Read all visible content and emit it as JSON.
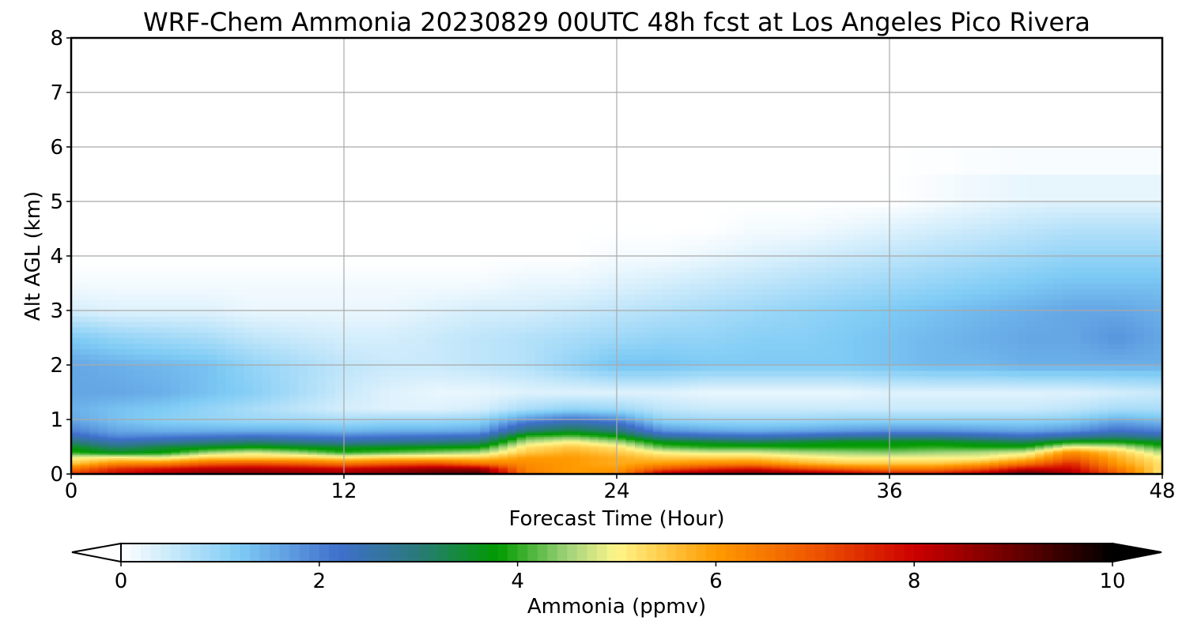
{
  "chart_data": {
    "type": "heatmap",
    "title": "WRF-Chem Ammonia  20230829 00UTC 48h fcst at Los Angeles Pico Rivera",
    "xlabel": "Forecast Time (Hour)",
    "ylabel": "Alt AGL (km)",
    "xlim": [
      0,
      48
    ],
    "ylim": [
      0,
      8
    ],
    "xticks": [
      "0",
      "12",
      "24",
      "36",
      "48"
    ],
    "yticks": [
      "0",
      "1",
      "2",
      "3",
      "4",
      "5",
      "6",
      "7",
      "8"
    ],
    "grid": true,
    "colorbar": {
      "label": "Ammonia  (ppmv)",
      "range": [
        0,
        10
      ],
      "ticks": [
        "0",
        "2",
        "4",
        "6",
        "8",
        "10"
      ],
      "extend": "both",
      "stops": [
        {
          "v": 0,
          "c": "#ffffff"
        },
        {
          "v": 1.2,
          "c": "#7ecbf5"
        },
        {
          "v": 2.2,
          "c": "#3f6fcc"
        },
        {
          "v": 3.0,
          "c": "#2a7a7a"
        },
        {
          "v": 3.8,
          "c": "#009a00"
        },
        {
          "v": 4.5,
          "c": "#9fd27a"
        },
        {
          "v": 5.0,
          "c": "#fff68a"
        },
        {
          "v": 6.0,
          "c": "#ff9a00"
        },
        {
          "v": 7.0,
          "c": "#ee5500"
        },
        {
          "v": 8.0,
          "c": "#cc0000"
        },
        {
          "v": 9.0,
          "c": "#6a0000"
        },
        {
          "v": 10.0,
          "c": "#000000"
        }
      ]
    },
    "x": [
      0,
      2,
      4,
      6,
      8,
      10,
      12,
      14,
      16,
      18,
      20,
      22,
      24,
      26,
      28,
      30,
      32,
      34,
      36,
      38,
      40,
      42,
      44,
      46,
      48
    ],
    "y": [
      0,
      0.1,
      0.2,
      0.3,
      0.4,
      0.5,
      0.6,
      0.7,
      0.8,
      1.0,
      1.2,
      1.5,
      2.0,
      2.5,
      3.0,
      3.5,
      4.0,
      4.5,
      5.0,
      6.0,
      8.0
    ],
    "z": [
      [
        7.5,
        8.0,
        8.5,
        8.8,
        8.8,
        8.7,
        8.6,
        8.9,
        9.2,
        9.5,
        6.5,
        6.0,
        6.2,
        8.5,
        9.0,
        9.2,
        9.0,
        8.6,
        8.0,
        8.0,
        8.5,
        9.5,
        8.5,
        7.0,
        5.0
      ],
      [
        6.5,
        7.5,
        7.8,
        8.2,
        8.3,
        8.2,
        8.0,
        8.3,
        8.6,
        8.5,
        6.3,
        6.0,
        6.0,
        7.0,
        7.5,
        7.8,
        7.2,
        6.8,
        6.5,
        6.5,
        7.0,
        8.0,
        8.0,
        6.5,
        5.2
      ],
      [
        5.5,
        6.2,
        6.3,
        6.8,
        7.0,
        6.8,
        6.5,
        6.8,
        7.0,
        6.5,
        6.2,
        6.0,
        5.8,
        6.0,
        6.2,
        6.3,
        5.8,
        5.5,
        5.5,
        5.5,
        5.8,
        6.5,
        7.5,
        6.0,
        5.2
      ],
      [
        5.0,
        5.2,
        5.0,
        5.5,
        5.5,
        5.5,
        5.3,
        5.5,
        5.5,
        5.5,
        6.0,
        6.0,
        5.8,
        5.5,
        5.5,
        5.5,
        5.2,
        5.0,
        5.0,
        5.0,
        5.0,
        5.5,
        6.8,
        5.8,
        5.0
      ],
      [
        4.0,
        3.6,
        3.8,
        4.5,
        4.8,
        4.5,
        4.0,
        4.2,
        4.4,
        4.6,
        5.5,
        5.8,
        5.5,
        5.0,
        4.8,
        4.8,
        4.6,
        4.5,
        4.4,
        4.5,
        4.6,
        4.8,
        6.2,
        5.5,
        4.6
      ],
      [
        3.6,
        3.0,
        3.4,
        3.6,
        3.8,
        3.6,
        3.5,
        3.6,
        3.7,
        3.8,
        5.2,
        5.5,
        5.2,
        4.2,
        4.0,
        4.0,
        3.9,
        3.9,
        3.9,
        4.0,
        3.9,
        3.9,
        5.0,
        4.8,
        4.0
      ],
      [
        3.0,
        2.4,
        2.6,
        2.8,
        3.0,
        2.8,
        2.6,
        2.7,
        2.8,
        3.0,
        4.6,
        5.0,
        4.5,
        3.6,
        3.4,
        3.2,
        3.4,
        3.6,
        3.6,
        3.6,
        3.4,
        3.2,
        3.8,
        3.8,
        3.5
      ],
      [
        2.4,
        1.9,
        2.0,
        2.1,
        2.2,
        2.1,
        2.0,
        2.1,
        2.2,
        2.3,
        4.0,
        4.2,
        3.8,
        2.6,
        2.4,
        2.3,
        2.4,
        2.6,
        2.7,
        2.7,
        2.5,
        2.3,
        2.6,
        2.9,
        2.6
      ],
      [
        2.0,
        1.6,
        1.5,
        1.5,
        1.5,
        1.5,
        1.4,
        1.5,
        1.5,
        1.6,
        3.0,
        3.4,
        3.0,
        1.8,
        1.6,
        1.5,
        1.6,
        1.7,
        1.8,
        1.8,
        1.7,
        1.6,
        1.8,
        2.2,
        2.0
      ],
      [
        1.6,
        1.3,
        1.1,
        1.0,
        0.9,
        0.9,
        0.8,
        0.9,
        0.9,
        1.0,
        1.8,
        2.2,
        1.9,
        1.0,
        0.9,
        0.9,
        0.9,
        1.0,
        1.0,
        1.0,
        1.0,
        1.0,
        1.1,
        1.5,
        1.3
      ],
      [
        1.5,
        1.3,
        1.2,
        1.0,
        0.8,
        0.6,
        0.4,
        0.3,
        0.3,
        0.4,
        0.8,
        1.0,
        0.9,
        0.6,
        0.5,
        0.5,
        0.5,
        0.5,
        0.5,
        0.5,
        0.5,
        0.5,
        0.6,
        0.8,
        0.8
      ],
      [
        1.6,
        1.6,
        1.5,
        1.3,
        1.1,
        0.8,
        0.5,
        0.3,
        0.2,
        0.2,
        0.3,
        0.3,
        0.3,
        0.3,
        0.2,
        0.2,
        0.2,
        0.2,
        0.3,
        0.3,
        0.3,
        0.3,
        0.3,
        0.4,
        0.5
      ],
      [
        1.6,
        1.5,
        1.4,
        1.3,
        1.0,
        0.8,
        0.6,
        0.5,
        0.5,
        0.6,
        0.7,
        1.0,
        1.3,
        1.3,
        1.2,
        1.2,
        1.2,
        1.2,
        1.3,
        1.4,
        1.4,
        1.5,
        1.5,
        1.5,
        1.5
      ],
      [
        1.2,
        1.0,
        0.9,
        0.8,
        0.6,
        0.5,
        0.4,
        0.4,
        0.5,
        0.6,
        0.7,
        0.8,
        0.9,
        1.0,
        1.0,
        1.1,
        1.1,
        1.2,
        1.3,
        1.4,
        1.5,
        1.6,
        1.6,
        1.8,
        1.6
      ],
      [
        0.4,
        0.3,
        0.3,
        0.3,
        0.2,
        0.2,
        0.2,
        0.2,
        0.3,
        0.4,
        0.4,
        0.5,
        0.6,
        0.7,
        0.8,
        0.9,
        1.0,
        1.1,
        1.2,
        1.3,
        1.4,
        1.5,
        1.6,
        1.6,
        1.5
      ],
      [
        0.1,
        0.1,
        0.1,
        0.1,
        0.1,
        0.1,
        0.1,
        0.1,
        0.1,
        0.1,
        0.2,
        0.2,
        0.3,
        0.4,
        0.5,
        0.6,
        0.7,
        0.8,
        0.9,
        1.0,
        1.1,
        1.2,
        1.3,
        1.3,
        1.3
      ],
      [
        0.0,
        0.0,
        0.0,
        0.0,
        0.0,
        0.0,
        0.0,
        0.0,
        0.0,
        0.0,
        0.0,
        0.0,
        0.1,
        0.1,
        0.2,
        0.3,
        0.4,
        0.5,
        0.6,
        0.7,
        0.8,
        0.9,
        1.0,
        1.0,
        1.0
      ],
      [
        0.0,
        0.0,
        0.0,
        0.0,
        0.0,
        0.0,
        0.0,
        0.0,
        0.0,
        0.0,
        0.0,
        0.0,
        0.0,
        0.0,
        0.0,
        0.1,
        0.1,
        0.2,
        0.3,
        0.4,
        0.5,
        0.6,
        0.7,
        0.7,
        0.7
      ],
      [
        0.0,
        0.0,
        0.0,
        0.0,
        0.0,
        0.0,
        0.0,
        0.0,
        0.0,
        0.0,
        0.0,
        0.0,
        0.0,
        0.0,
        0.0,
        0.0,
        0.0,
        0.0,
        0.0,
        0.1,
        0.2,
        0.3,
        0.3,
        0.3,
        0.3
      ],
      [
        0.0,
        0.0,
        0.0,
        0.0,
        0.0,
        0.0,
        0.0,
        0.0,
        0.0,
        0.0,
        0.0,
        0.0,
        0.0,
        0.0,
        0.0,
        0.0,
        0.0,
        0.0,
        0.0,
        0.0,
        0.0,
        0.0,
        0.0,
        0.0,
        0.0
      ],
      [
        0.0,
        0.0,
        0.0,
        0.0,
        0.0,
        0.0,
        0.0,
        0.0,
        0.0,
        0.0,
        0.0,
        0.0,
        0.0,
        0.0,
        0.0,
        0.0,
        0.0,
        0.0,
        0.0,
        0.0,
        0.0,
        0.0,
        0.0,
        0.0,
        0.0
      ]
    ]
  }
}
